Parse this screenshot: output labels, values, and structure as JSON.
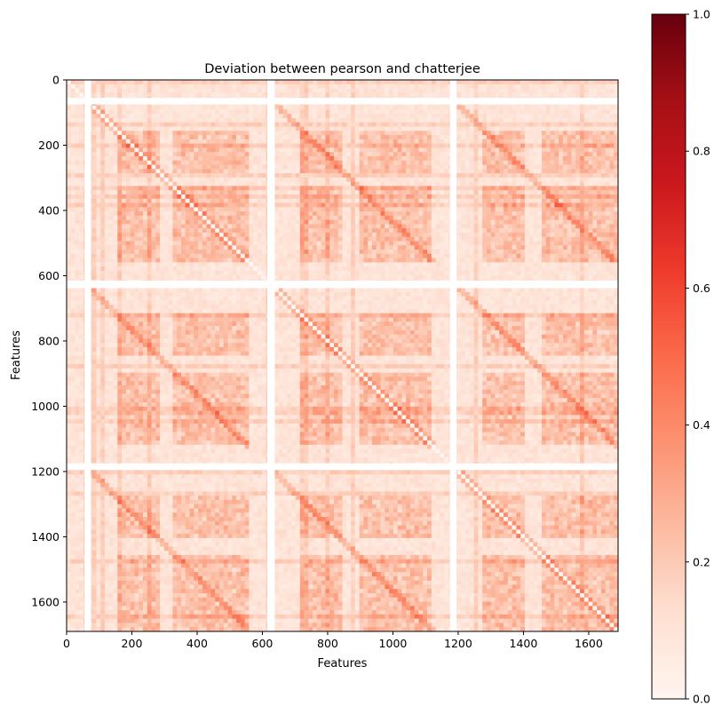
{
  "chart_data": {
    "type": "heatmap",
    "title": "Deviation between pearson and chatterjee",
    "xlabel": "Features",
    "ylabel": "Features",
    "xlim": [
      0,
      1690
    ],
    "ylim": [
      1690,
      0
    ],
    "matrix_size": 1690,
    "xticks": [
      0,
      200,
      400,
      600,
      800,
      1000,
      1200,
      1400,
      1600
    ],
    "yticks": [
      0,
      200,
      400,
      600,
      800,
      1000,
      1200,
      1400,
      1600
    ],
    "colorbar": {
      "cmap": "Reds",
      "vmin": 0.0,
      "vmax": 1.0,
      "ticks": [
        0.0,
        0.2,
        0.4,
        0.6,
        0.8,
        1.0
      ],
      "tick_labels": [
        "0.0",
        "0.2",
        "0.4",
        "0.6",
        "0.8",
        "1.0"
      ]
    },
    "block_boundaries": [
      0,
      563,
      1127,
      1690
    ],
    "blank_bands": [
      [
        55,
        75
      ],
      [
        615,
        638
      ],
      [
        1175,
        1195
      ]
    ],
    "diagonal_value": 0.0,
    "typical_offdiag_value": 0.1,
    "peak_cluster_value": 0.5,
    "grid": false
  },
  "colors": {
    "low": "#fff5f0",
    "mid": "#fc9272",
    "high": "#67000d"
  }
}
